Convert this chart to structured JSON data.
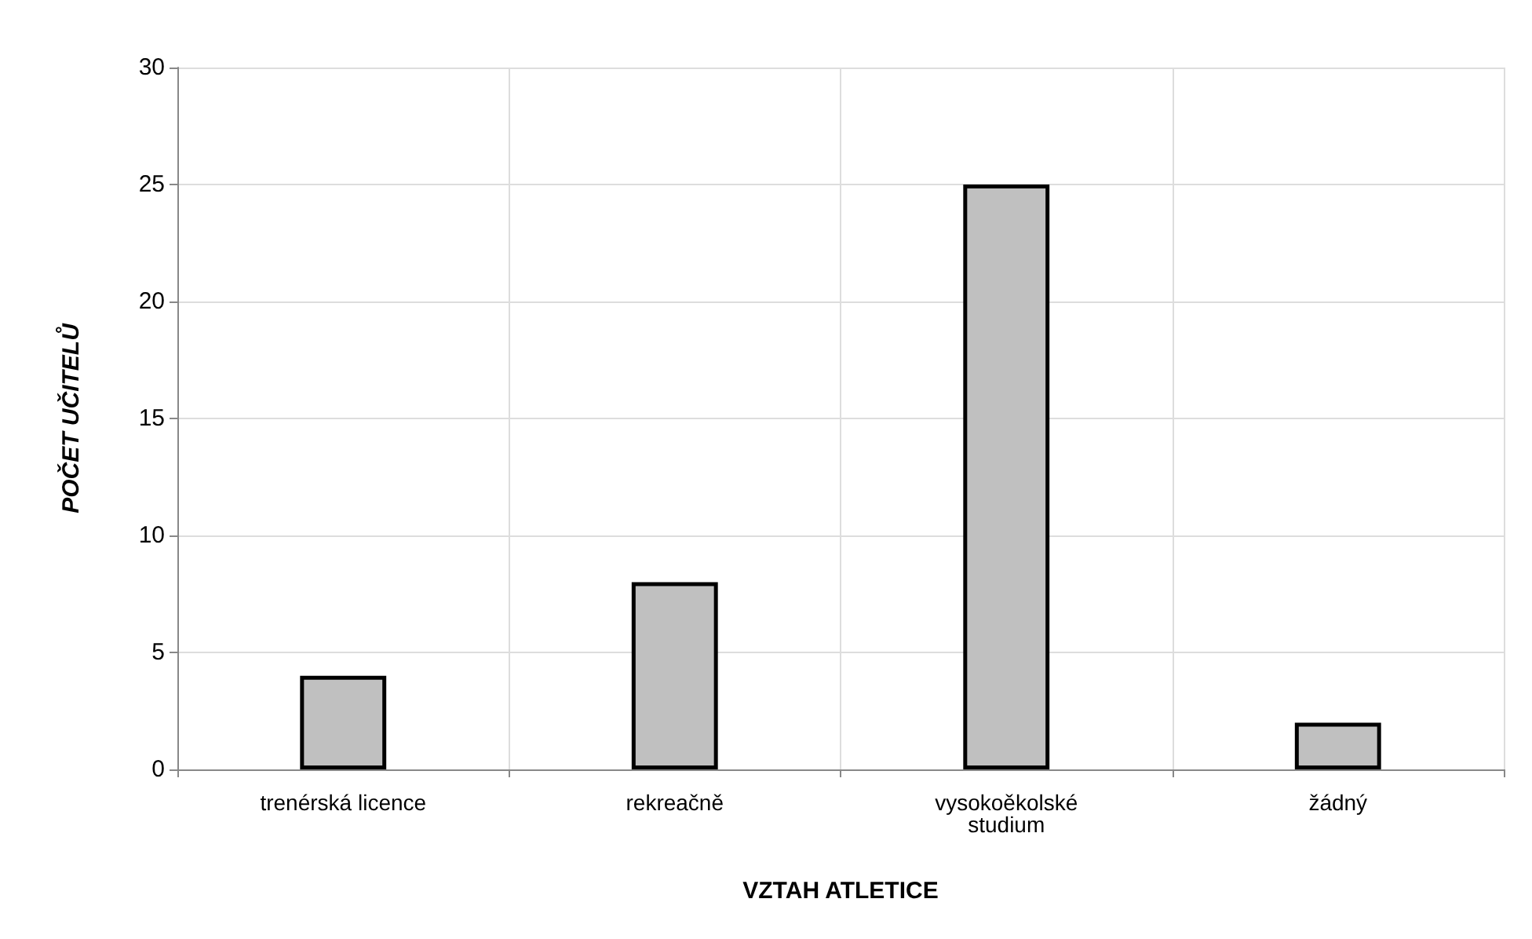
{
  "chart_data": {
    "type": "bar",
    "xlabel": "VZTAH ATLETICE",
    "ylabel": "POČET UČITELŮ",
    "categories": [
      "trenérská licence",
      "rekreačně",
      "vysokoěkolské\nstudium",
      "žádný"
    ],
    "values": [
      4,
      8,
      25,
      2
    ],
    "color": "#c0c0c0",
    "ylim": [
      0,
      30
    ],
    "yticks": [
      0,
      5,
      10,
      15,
      20,
      25,
      30
    ],
    "grid": true
  }
}
